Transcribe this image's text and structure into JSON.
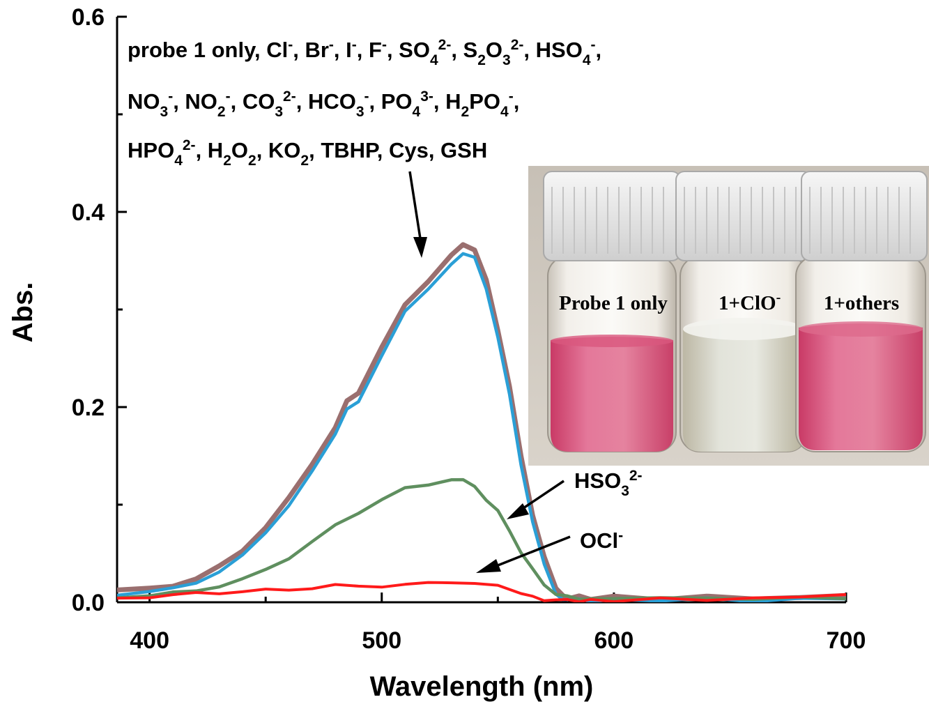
{
  "chart_data": {
    "type": "line",
    "title": "",
    "xlabel": "Wavelength (nm)",
    "ylabel": "Abs.",
    "xlim": [
      386,
      700
    ],
    "ylim": [
      0,
      0.6
    ],
    "x_ticks": [
      "400",
      "500",
      "600",
      "700"
    ],
    "y_ticks": [
      "0.0",
      "0.2",
      "0.4",
      "0.6"
    ],
    "grid": false,
    "legend_lines": [
      [
        {
          "t": "probe 1 only, Cl"
        },
        {
          "t": "-",
          "s": "sup"
        },
        {
          "t": ", Br"
        },
        {
          "t": "-",
          "s": "sup"
        },
        {
          "t": ", I"
        },
        {
          "t": "-",
          "s": "sup"
        },
        {
          "t": ", F"
        },
        {
          "t": "-",
          "s": "sup"
        },
        {
          "t": ", SO"
        },
        {
          "t": "4",
          "s": "sub"
        },
        {
          "t": "2-",
          "s": "sup"
        },
        {
          "t": ", S"
        },
        {
          "t": "2",
          "s": "sub"
        },
        {
          "t": "O"
        },
        {
          "t": "3",
          "s": "sub"
        },
        {
          "t": "2-",
          "s": "sup"
        },
        {
          "t": ", HSO"
        },
        {
          "t": "4",
          "s": "sub"
        },
        {
          "t": "-",
          "s": "sup"
        },
        {
          "t": ","
        }
      ],
      [
        {
          "t": "NO"
        },
        {
          "t": "3",
          "s": "sub"
        },
        {
          "t": "-",
          "s": "sup"
        },
        {
          "t": ", NO"
        },
        {
          "t": "2",
          "s": "sub"
        },
        {
          "t": "-",
          "s": "sup"
        },
        {
          "t": ", CO"
        },
        {
          "t": "3",
          "s": "sub"
        },
        {
          "t": "2-",
          "s": "sup"
        },
        {
          "t": ", HCO"
        },
        {
          "t": "3",
          "s": "sub"
        },
        {
          "t": "-",
          "s": "sup"
        },
        {
          "t": ", PO"
        },
        {
          "t": "4",
          "s": "sub"
        },
        {
          "t": "3-",
          "s": "sup"
        },
        {
          "t": ", H"
        },
        {
          "t": "2",
          "s": "sub"
        },
        {
          "t": "PO"
        },
        {
          "t": "4",
          "s": "sub"
        },
        {
          "t": "-",
          "s": "sup"
        },
        {
          "t": ","
        }
      ],
      [
        {
          "t": "HPO"
        },
        {
          "t": "4",
          "s": "sub"
        },
        {
          "t": "2-",
          "s": "sup"
        },
        {
          "t": ", H"
        },
        {
          "t": "2",
          "s": "sub"
        },
        {
          "t": "O"
        },
        {
          "t": "2",
          "s": "sub"
        },
        {
          "t": ", KO"
        },
        {
          "t": "2",
          "s": "sub"
        },
        {
          "t": ", TBHP, Cys, GSH"
        }
      ]
    ],
    "annotations": [
      {
        "name": "hso3",
        "parts": [
          {
            "t": "HSO"
          },
          {
            "t": "3",
            "s": "sub"
          },
          {
            "t": "2-",
            "s": "sup"
          }
        ]
      },
      {
        "name": "ocl",
        "parts": [
          {
            "t": "OCl"
          },
          {
            "t": "-",
            "s": "sup"
          }
        ]
      }
    ],
    "inset": {
      "vial_labels": [
        "Probe 1 only",
        "1+ClO",
        "1+others"
      ],
      "vial_label_sup": "-"
    },
    "series": [
      {
        "name": "probe 1 + others (overlapping)",
        "color": "#9a6f6f",
        "x": [
          386,
          400,
          410,
          420,
          430,
          440,
          450,
          460,
          470,
          480,
          485,
          490,
          500,
          510,
          520,
          530,
          535,
          540,
          545,
          550,
          555,
          560,
          565,
          570,
          575,
          578,
          580,
          585,
          590,
          600,
          620,
          640,
          660,
          680,
          700
        ],
        "y": [
          0.012,
          0.013,
          0.017,
          0.025,
          0.036,
          0.052,
          0.078,
          0.107,
          0.14,
          0.18,
          0.205,
          0.215,
          0.26,
          0.305,
          0.33,
          0.355,
          0.368,
          0.36,
          0.33,
          0.28,
          0.22,
          0.15,
          0.09,
          0.045,
          0.015,
          0.006,
          0.004,
          0.005,
          0.004,
          0.005,
          0.004,
          0.005,
          0.004,
          0.005,
          0.006
        ]
      },
      {
        "name": "probe 1 only",
        "color": "#2a9fd6",
        "x": [
          386,
          400,
          410,
          420,
          430,
          440,
          450,
          460,
          470,
          480,
          485,
          490,
          500,
          510,
          520,
          530,
          535,
          540,
          545,
          550,
          555,
          560,
          565,
          570,
          575,
          578,
          580,
          585,
          590,
          600,
          620,
          640,
          660,
          680,
          700
        ],
        "y": [
          0.008,
          0.01,
          0.014,
          0.021,
          0.031,
          0.047,
          0.072,
          0.1,
          0.133,
          0.172,
          0.197,
          0.207,
          0.252,
          0.297,
          0.322,
          0.347,
          0.358,
          0.352,
          0.322,
          0.272,
          0.212,
          0.142,
          0.082,
          0.038,
          0.01,
          0.003,
          0.002,
          0.003,
          0.002,
          0.003,
          0.002,
          0.003,
          0.002,
          0.003,
          0.004
        ]
      },
      {
        "name": "HSO3 2-",
        "color": "#5f8f5f",
        "x": [
          386,
          400,
          410,
          420,
          430,
          440,
          450,
          460,
          470,
          480,
          490,
          500,
          510,
          520,
          530,
          535,
          540,
          545,
          550,
          555,
          560,
          565,
          570,
          575,
          580,
          585,
          590,
          600,
          620,
          640,
          660,
          680,
          700
        ],
        "y": [
          0.006,
          0.007,
          0.009,
          0.012,
          0.017,
          0.023,
          0.033,
          0.046,
          0.062,
          0.078,
          0.092,
          0.106,
          0.116,
          0.12,
          0.127,
          0.125,
          0.118,
          0.106,
          0.093,
          0.073,
          0.052,
          0.033,
          0.018,
          0.009,
          0.005,
          0.004,
          0.004,
          0.005,
          0.004,
          0.004,
          0.004,
          0.004,
          0.005
        ]
      },
      {
        "name": "OCl -",
        "color": "#ff1a1a",
        "x": [
          386,
          400,
          410,
          420,
          430,
          440,
          450,
          460,
          470,
          480,
          490,
          500,
          510,
          520,
          530,
          540,
          550,
          560,
          565,
          570,
          575,
          580,
          585,
          590,
          600,
          620,
          640,
          660,
          680,
          700
        ],
        "y": [
          0.005,
          0.006,
          0.007,
          0.009,
          0.01,
          0.011,
          0.012,
          0.013,
          0.015,
          0.017,
          0.016,
          0.017,
          0.018,
          0.019,
          0.021,
          0.02,
          0.016,
          0.009,
          0.005,
          0.003,
          0.002,
          0.002,
          0.002,
          0.002,
          0.002,
          0.003,
          0.003,
          0.004,
          0.005,
          0.009
        ]
      }
    ]
  }
}
